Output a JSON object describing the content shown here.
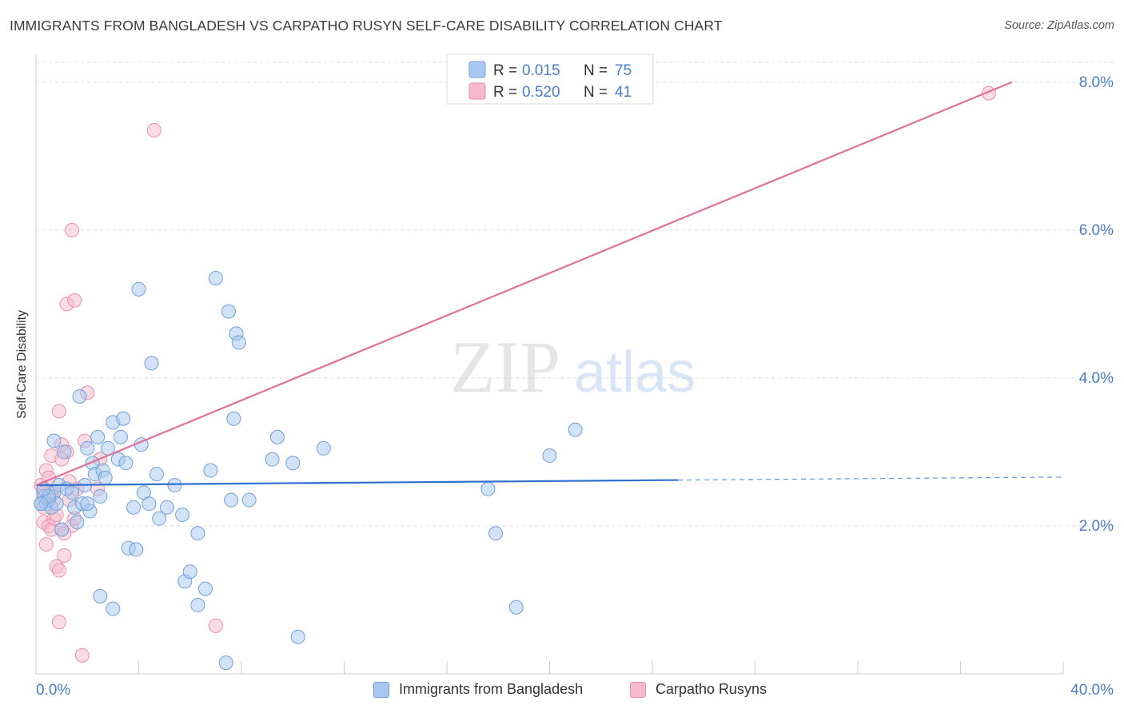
{
  "title": "IMMIGRANTS FROM BANGLADESH VS CARPATHO RUSYN SELF-CARE DISABILITY CORRELATION CHART",
  "source": "Source: ZipAtlas.com",
  "watermark": {
    "zip": "ZIP",
    "atlas": "atlas"
  },
  "colors": {
    "blue_fill": "#a8c8f0",
    "blue_edge": "#6f9fd8",
    "blue_line": "#2f6fce",
    "pink_fill": "#f7b9cb",
    "pink_edge": "#ea8fab",
    "pink_line": "#e0709a",
    "axis_text": "#4a7ec8",
    "grid": "#dddddd"
  },
  "legend_top": [
    {
      "r_label": "R =",
      "r_value": "0.015",
      "n_label": "N =",
      "n_value": "75"
    },
    {
      "r_label": "R =",
      "r_value": "0.520",
      "n_label": "N =",
      "n_value": "41"
    }
  ],
  "legend_bottom": [
    "Immigrants from Bangladesh",
    "Carpatho Rusyns"
  ],
  "chart_data": {
    "type": "scatter",
    "title": "IMMIGRANTS FROM BANGLADESH VS CARPATHO RUSYN SELF-CARE DISABILITY CORRELATION CHART",
    "xlabel": "",
    "ylabel": "Self-Care Disability",
    "xlim": [
      0,
      40
    ],
    "ylim": [
      0,
      8.3
    ],
    "x_tick_labels": [
      {
        "value": 0,
        "label": "0.0%"
      },
      {
        "value": 40,
        "label": "40.0%"
      }
    ],
    "y_tick_labels": [
      {
        "value": 2,
        "label": "2.0%"
      },
      {
        "value": 4,
        "label": "4.0%"
      },
      {
        "value": 6,
        "label": "6.0%"
      },
      {
        "value": 8,
        "label": "8.0%"
      }
    ],
    "x_minor_ticks": [
      4,
      8,
      12,
      16,
      20,
      24,
      28,
      32,
      36,
      40
    ],
    "series": [
      {
        "name": "Immigrants from Bangladesh",
        "color": "#a8c8f0",
        "R": 0.015,
        "N": 75,
        "trend": {
          "x0": 0,
          "y0": 2.55,
          "x1": 25,
          "y1": 2.62,
          "dashed_to_x": 40,
          "dashed_to_y": 2.66
        },
        "points": [
          [
            0.2,
            2.3
          ],
          [
            0.3,
            2.4
          ],
          [
            0.4,
            2.3
          ],
          [
            0.5,
            2.35
          ],
          [
            0.6,
            2.25
          ],
          [
            0.7,
            2.45
          ],
          [
            0.8,
            2.3
          ],
          [
            0.9,
            2.55
          ],
          [
            0.5,
            2.4
          ],
          [
            0.3,
            2.5
          ],
          [
            1.0,
            1.95
          ],
          [
            1.2,
            2.5
          ],
          [
            0.7,
            3.15
          ],
          [
            1.4,
            2.45
          ],
          [
            1.1,
            3.0
          ],
          [
            1.5,
            2.25
          ],
          [
            1.6,
            2.05
          ],
          [
            1.8,
            2.3
          ],
          [
            1.7,
            3.75
          ],
          [
            2.0,
            3.05
          ],
          [
            2.1,
            2.2
          ],
          [
            2.2,
            2.85
          ],
          [
            2.3,
            2.7
          ],
          [
            2.4,
            3.2
          ],
          [
            2.6,
            2.75
          ],
          [
            2.7,
            2.65
          ],
          [
            2.8,
            3.05
          ],
          [
            2.5,
            2.4
          ],
          [
            3.0,
            3.4
          ],
          [
            3.2,
            2.9
          ],
          [
            3.3,
            3.2
          ],
          [
            3.4,
            3.45
          ],
          [
            3.5,
            2.85
          ],
          [
            3.6,
            1.7
          ],
          [
            3.8,
            2.25
          ],
          [
            3.9,
            1.68
          ],
          [
            4.0,
            5.2
          ],
          [
            4.1,
            3.1
          ],
          [
            4.2,
            2.45
          ],
          [
            4.4,
            2.3
          ],
          [
            4.5,
            4.2
          ],
          [
            4.7,
            2.7
          ],
          [
            4.8,
            2.1
          ],
          [
            5.1,
            2.25
          ],
          [
            5.4,
            2.55
          ],
          [
            5.7,
            2.15
          ],
          [
            5.8,
            1.25
          ],
          [
            6.0,
            1.38
          ],
          [
            6.3,
            1.9
          ],
          [
            6.3,
            0.93
          ],
          [
            6.6,
            1.15
          ],
          [
            6.8,
            2.75
          ],
          [
            7.0,
            5.35
          ],
          [
            7.4,
            0.15
          ],
          [
            7.5,
            4.9
          ],
          [
            7.6,
            2.35
          ],
          [
            7.7,
            3.45
          ],
          [
            7.8,
            4.6
          ],
          [
            7.9,
            4.48
          ],
          [
            8.3,
            2.35
          ],
          [
            9.2,
            2.9
          ],
          [
            9.4,
            3.2
          ],
          [
            10.0,
            2.85
          ],
          [
            10.2,
            0.5
          ],
          [
            11.2,
            3.05
          ],
          [
            2.0,
            2.3
          ],
          [
            2.5,
            1.05
          ],
          [
            3.0,
            0.88
          ],
          [
            1.9,
            2.55
          ],
          [
            17.6,
            2.5
          ],
          [
            17.9,
            1.9
          ],
          [
            18.7,
            0.9
          ],
          [
            20.0,
            2.95
          ],
          [
            21.0,
            3.3
          ],
          [
            0.2,
            2.3
          ]
        ]
      },
      {
        "name": "Carpatho Rusyns",
        "color": "#f7b9cb",
        "R": 0.52,
        "N": 41,
        "trend": {
          "x0": 0,
          "y0": 2.55,
          "x1": 38.0,
          "y1": 8.0
        },
        "points": [
          [
            0.2,
            2.55
          ],
          [
            0.3,
            2.45
          ],
          [
            0.4,
            2.75
          ],
          [
            0.5,
            2.4
          ],
          [
            0.6,
            2.95
          ],
          [
            0.3,
            2.05
          ],
          [
            0.5,
            2.0
          ],
          [
            0.6,
            1.95
          ],
          [
            0.4,
            1.75
          ],
          [
            0.8,
            1.45
          ],
          [
            0.9,
            1.4
          ],
          [
            0.7,
            2.1
          ],
          [
            1.0,
            3.1
          ],
          [
            1.2,
            3.0
          ],
          [
            1.3,
            2.35
          ],
          [
            1.4,
            2.0
          ],
          [
            1.6,
            2.5
          ],
          [
            1.9,
            3.15
          ],
          [
            2.0,
            3.8
          ],
          [
            1.1,
            1.6
          ],
          [
            0.9,
            3.55
          ],
          [
            1.2,
            5.0
          ],
          [
            1.5,
            5.05
          ],
          [
            1.4,
            6.0
          ],
          [
            1.8,
            0.25
          ],
          [
            0.9,
            0.7
          ],
          [
            2.5,
            2.9
          ],
          [
            2.4,
            2.5
          ],
          [
            4.6,
            7.35
          ],
          [
            7.0,
            0.65
          ],
          [
            1.0,
            1.95
          ],
          [
            1.1,
            1.9
          ],
          [
            0.6,
            2.45
          ],
          [
            0.5,
            2.65
          ],
          [
            0.3,
            2.25
          ],
          [
            0.7,
            2.35
          ],
          [
            1.5,
            2.1
          ],
          [
            0.8,
            2.15
          ],
          [
            1.3,
            2.6
          ],
          [
            1.0,
            2.9
          ],
          [
            37.1,
            7.85
          ]
        ]
      }
    ]
  }
}
